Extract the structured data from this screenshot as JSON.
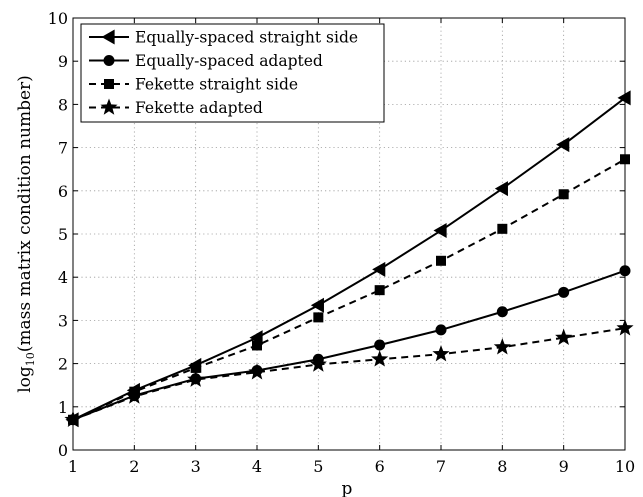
{
  "chart_data": {
    "type": "line",
    "title": "",
    "xlabel": "p",
    "ylabel": "log",
    "ylabel_sub": "10",
    "ylabel_rest": "(mass matrix condition number)",
    "xlim": [
      1,
      10
    ],
    "ylim": [
      0,
      10
    ],
    "x_ticks": [
      1,
      2,
      3,
      4,
      5,
      6,
      7,
      8,
      9,
      10
    ],
    "y_ticks": [
      0,
      1,
      2,
      3,
      4,
      5,
      6,
      7,
      8,
      9,
      10
    ],
    "grid": true,
    "legend_position": "top-left",
    "x": [
      1,
      2,
      3,
      4,
      5,
      6,
      7,
      8,
      9,
      10
    ],
    "series": [
      {
        "name": "Equally-spaced straight side",
        "values": [
          0.7,
          1.38,
          1.96,
          2.6,
          3.35,
          4.18,
          5.08,
          6.05,
          7.07,
          8.15
        ],
        "line_style": "solid",
        "marker": "left-triangle",
        "color": "#000000"
      },
      {
        "name": "Equally-spaced adapted",
        "values": [
          0.7,
          1.26,
          1.65,
          1.84,
          2.1,
          2.43,
          2.78,
          3.2,
          3.65,
          4.15
        ],
        "line_style": "solid",
        "marker": "circle",
        "color": "#000000"
      },
      {
        "name": "Fekette straight side",
        "values": [
          0.7,
          1.35,
          1.9,
          2.42,
          3.07,
          3.7,
          4.38,
          5.12,
          5.92,
          6.73
        ],
        "line_style": "dashed",
        "marker": "square",
        "color": "#000000"
      },
      {
        "name": "Fekette adapted",
        "values": [
          0.7,
          1.24,
          1.63,
          1.8,
          1.98,
          2.1,
          2.22,
          2.38,
          2.6,
          2.82
        ],
        "line_style": "dashed",
        "marker": "star",
        "color": "#000000"
      }
    ]
  }
}
